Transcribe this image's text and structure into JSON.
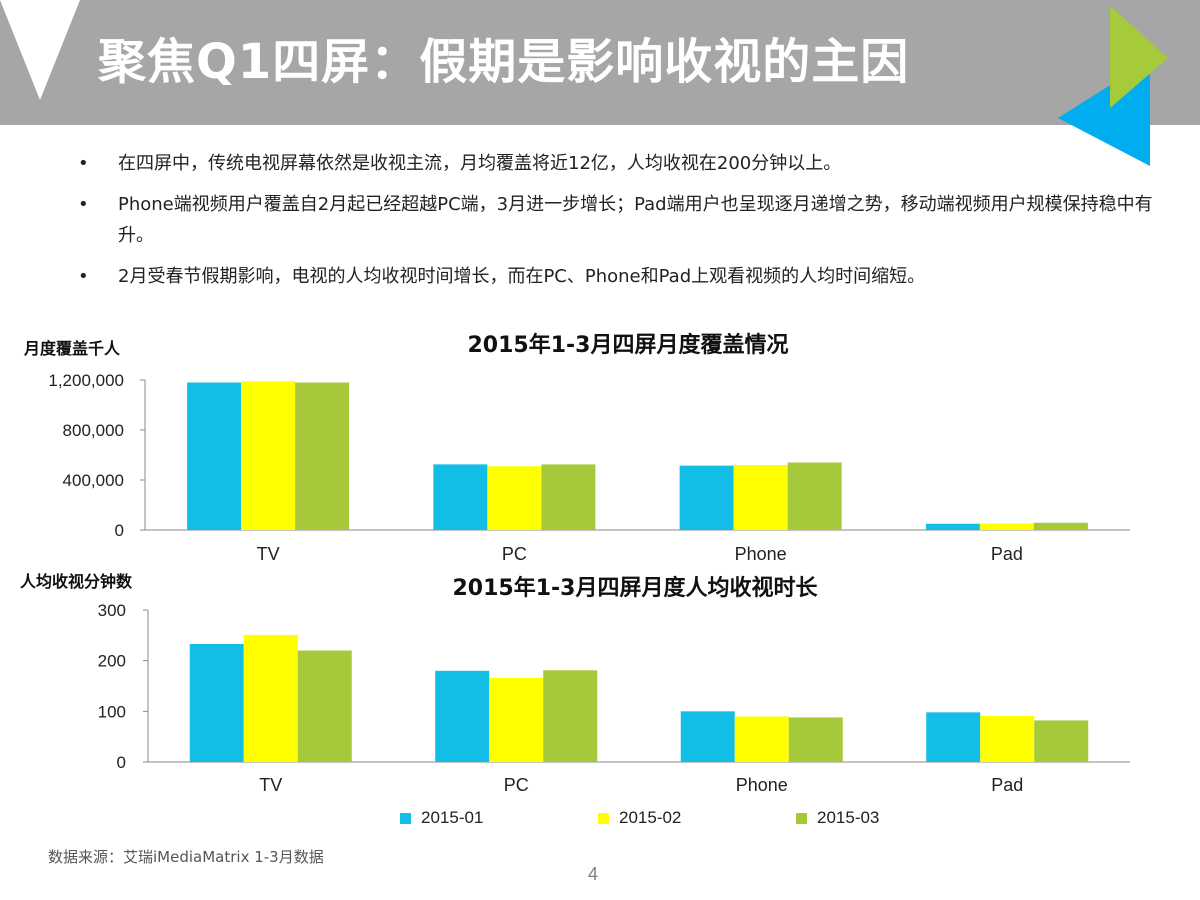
{
  "header": {
    "title": "聚焦Q1四屏：假期是影响收视的主因"
  },
  "bullets": [
    {
      "text": "在四屏中，传统电视屏幕依然是收视主流，月均覆盖将近12亿，人均收视在200分钟以上。"
    },
    {
      "text": "Phone端视频用户覆盖自2月起已经超越PC端，3月进一步增长；Pad端用户也呈现逐月递增之势，移动端视频用户规模保持稳中有升。"
    },
    {
      "text": "2月受春节假期影响，电视的人均收视时间增长，而在PC、Phone和Pad上观看视频的人均时间缩短。"
    }
  ],
  "bullet_symbol": "•",
  "colors": {
    "header_bg": "#a6a6a6",
    "series_2015_01": "#12bde6",
    "series_2015_02": "#ffff00",
    "series_2015_03": "#a5c93b",
    "deco_green": "#a6cb3a",
    "deco_blue": "#00aeef",
    "deco_white": "#ffffff"
  },
  "chart_data": [
    {
      "type": "bar",
      "title": "2015年1-3月四屏月度覆盖情况",
      "ylabel": "月度覆盖千人",
      "xlabel": "",
      "categories": [
        "TV",
        "PC",
        "Phone",
        "Pad"
      ],
      "series": [
        {
          "name": "2015-01",
          "values": [
            1180000,
            525000,
            515000,
            50000
          ]
        },
        {
          "name": "2015-02",
          "values": [
            1190000,
            510000,
            520000,
            52000
          ]
        },
        {
          "name": "2015-03",
          "values": [
            1180000,
            525000,
            540000,
            58000
          ]
        }
      ],
      "ylim": [
        0,
        1200000
      ],
      "yticks": [
        0,
        400000,
        800000,
        1200000
      ],
      "ytick_labels": [
        "0",
        "400,000",
        "800,000",
        "1,200,000"
      ],
      "grid": false,
      "legend": "bottom"
    },
    {
      "type": "bar",
      "title": "2015年1-3月四屏月度人均收视时长",
      "ylabel": "人均收视分钟数",
      "xlabel": "",
      "categories": [
        "TV",
        "PC",
        "Phone",
        "Pad"
      ],
      "series": [
        {
          "name": "2015-01",
          "values": [
            233,
            180,
            100,
            98
          ]
        },
        {
          "name": "2015-02",
          "values": [
            251,
            166,
            90,
            91
          ]
        },
        {
          "name": "2015-03",
          "values": [
            220,
            181,
            88,
            82
          ]
        }
      ],
      "ylim": [
        0,
        300
      ],
      "yticks": [
        0,
        100,
        200,
        300
      ],
      "ytick_labels": [
        "0",
        "100",
        "200",
        "300"
      ],
      "grid": false,
      "legend": "bottom"
    }
  ],
  "legend": [
    {
      "label": "2015-01"
    },
    {
      "label": "2015-02"
    },
    {
      "label": "2015-03"
    }
  ],
  "source": "数据来源：艾瑞iMediaMatrix 1-3月数据",
  "page_number": "4"
}
